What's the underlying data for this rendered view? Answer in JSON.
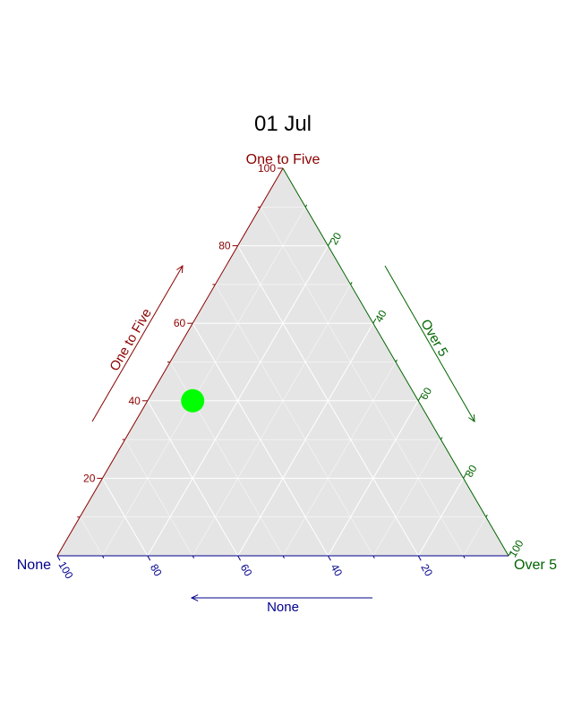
{
  "chart_data": {
    "type": "scatter",
    "subtype": "ternary",
    "title": "01 Jul",
    "grid": true,
    "legend": "none",
    "axes": {
      "top": {
        "name": "One to Five",
        "vertex_label": "One to Five",
        "color": "#8b0000",
        "ticks": [
          20,
          40,
          60,
          80,
          100
        ]
      },
      "left": {
        "name": "None",
        "vertex_label": "None",
        "color": "#00008b",
        "ticks": [
          20,
          40,
          60,
          80,
          100
        ]
      },
      "right": {
        "name": "Over 5",
        "vertex_label": "Over 5",
        "color": "#006400",
        "ticks": [
          20,
          40,
          60,
          80,
          100
        ]
      }
    },
    "points": [
      {
        "one_to_five": 40,
        "none": 50,
        "over_5": 10
      }
    ],
    "point_color": "#00ff00",
    "panel_color": "#e5e5e5",
    "grid_color": "#ffffff"
  }
}
